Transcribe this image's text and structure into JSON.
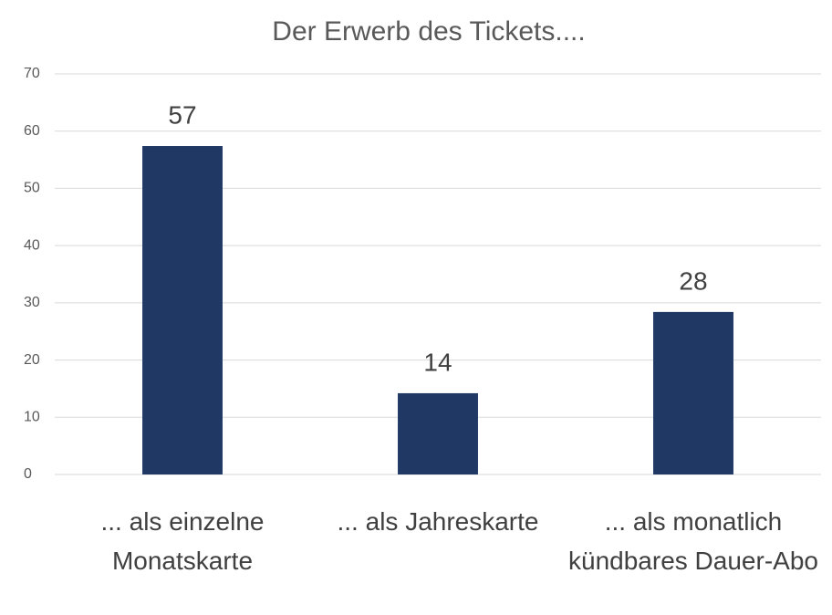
{
  "chart_data": {
    "type": "bar",
    "title": "Der Erwerb des Tickets....",
    "categories": [
      "... als einzelne Monatskarte",
      "... als Jahreskarte",
      "... als monatlich kündbares Dauer-Abo"
    ],
    "values": [
      57.4,
      14.2,
      28.4
    ],
    "value_labels": [
      "57",
      "14",
      "28"
    ],
    "color": "#203864",
    "ylim": [
      0,
      70
    ],
    "yticks": [
      0,
      10,
      20,
      30,
      40,
      50,
      60,
      70
    ],
    "grid": true
  }
}
